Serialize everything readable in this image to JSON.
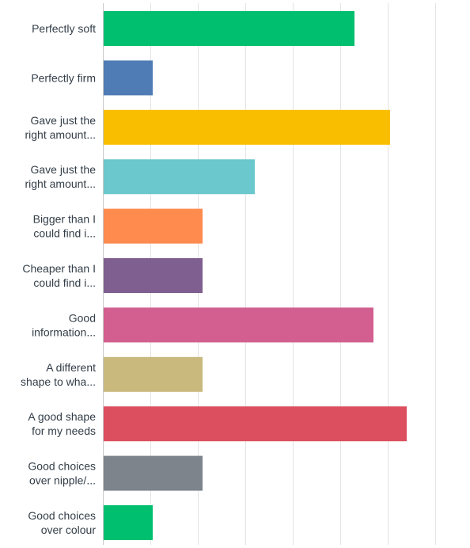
{
  "chart_data": {
    "type": "bar",
    "orientation": "horizontal",
    "categories": [
      [
        "Perfectly soft"
      ],
      [
        "Perfectly firm"
      ],
      [
        "Gave just the",
        "right amount..."
      ],
      [
        "Gave just the",
        "right amount..."
      ],
      [
        "Bigger than I",
        "could find i..."
      ],
      [
        "Cheaper than I",
        "could find i..."
      ],
      [
        "Good",
        "information..."
      ],
      [
        "A different",
        "shape to wha..."
      ],
      [
        "A good shape",
        "for my needs"
      ],
      [
        "Good choices",
        "over nipple/..."
      ],
      [
        "Good choices",
        "over colour"
      ]
    ],
    "values": [
      53,
      10.5,
      60.5,
      32,
      21,
      21,
      57,
      21,
      64,
      21,
      10.5
    ],
    "colors": [
      "#00bf6f",
      "#507cb6",
      "#f9be00",
      "#6bc8cd",
      "#ff8b4f",
      "#7f5f90",
      "#d25f90",
      "#c9b97d",
      "#dc4f5f",
      "#7d848b",
      "#00bf6f"
    ],
    "xlim": [
      0,
      70
    ],
    "x_grid_step": 10,
    "grid": true,
    "legend": "none",
    "title": "",
    "xlabel": "",
    "ylabel": ""
  }
}
